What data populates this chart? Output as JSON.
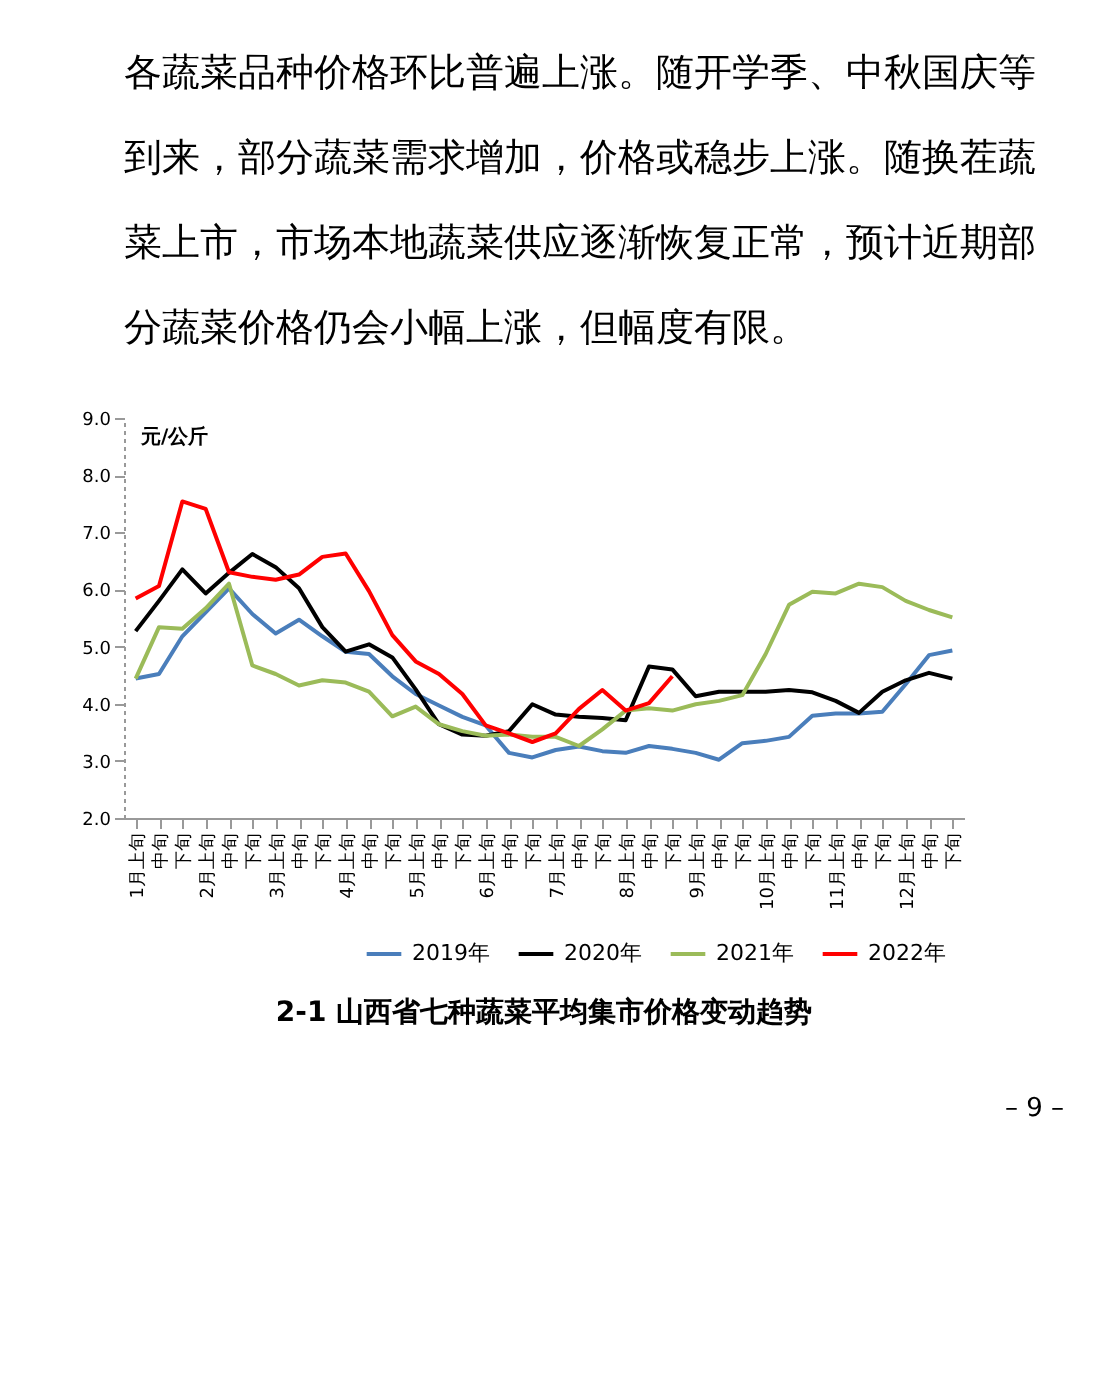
{
  "chart_data": {
    "type": "line",
    "title": "2-1 山西省七种蔬菜平均集市价格变动趋势",
    "ylabel": "元/公斤",
    "annotations": [
      "各蔬菜品种价格环比普遍上涨。随开学季、中秋国庆等",
      "到来，部分蔬菜需求增加，价格或稳步上涨。随换茬蔬",
      "菜上市，市场本地蔬菜供应逐渐恢复正常，预计近期部",
      "分蔬菜价格仍会小幅上涨，但幅度有限。",
      "– 9 –"
    ],
    "categories": [
      "1月上旬",
      "中旬",
      "下旬",
      "2月上旬",
      "中旬",
      "下旬",
      "3月上旬",
      "中旬",
      "下旬",
      "4月上旬",
      "中旬",
      "下旬",
      "5月上旬",
      "中旬",
      "下旬",
      "6月上旬",
      "中旬",
      "下旬",
      "7月上旬",
      "中旬",
      "下旬",
      "8月上旬",
      "中旬",
      "下旬",
      "9月上旬",
      "中旬",
      "下旬",
      "10月上旬",
      "中旬",
      "下旬",
      "11月上旬",
      "中旬",
      "下旬",
      "12月上旬",
      "中旬",
      "下旬"
    ],
    "series": [
      {
        "name": "2019年",
        "color": "#4a7ebb",
        "values": [
          4.44,
          4.52,
          5.18,
          5.6,
          6.02,
          5.57,
          5.23,
          5.47,
          5.18,
          4.91,
          4.87,
          4.48,
          4.17,
          3.97,
          3.77,
          3.62,
          3.14,
          3.06,
          3.19,
          3.25,
          3.17,
          3.14,
          3.26,
          3.21,
          3.14,
          3.02,
          3.31,
          3.35,
          3.42,
          3.79,
          3.83,
          3.83,
          3.86,
          4.34,
          4.85,
          4.93
        ]
      },
      {
        "name": "2020年",
        "color": "#000000",
        "values": [
          5.27,
          5.8,
          6.35,
          5.93,
          6.29,
          6.62,
          6.39,
          6.02,
          5.34,
          4.91,
          5.04,
          4.81,
          4.25,
          3.64,
          3.46,
          3.44,
          3.52,
          3.99,
          3.81,
          3.77,
          3.75,
          3.71,
          4.65,
          4.6,
          4.13,
          4.21,
          4.21,
          4.21,
          4.24,
          4.2,
          4.05,
          3.84,
          4.21,
          4.41,
          4.54,
          4.44
        ]
      },
      {
        "name": "2021年",
        "color": "#9bbb59",
        "values": [
          4.44,
          5.34,
          5.31,
          5.67,
          6.1,
          4.67,
          4.52,
          4.32,
          4.41,
          4.37,
          4.21,
          3.78,
          3.95,
          3.64,
          3.52,
          3.44,
          3.46,
          3.42,
          3.42,
          3.26,
          3.55,
          3.88,
          3.92,
          3.88,
          3.99,
          4.05,
          4.15,
          4.87,
          5.73,
          5.96,
          5.93,
          6.1,
          6.04,
          5.8,
          5.64,
          5.51
        ]
      },
      {
        "name": "2022年",
        "color": "#ff0000",
        "values": [
          5.84,
          6.06,
          7.54,
          7.41,
          6.3,
          6.22,
          6.17,
          6.26,
          6.57,
          6.63,
          5.97,
          5.2,
          4.74,
          4.52,
          4.17,
          3.62,
          3.48,
          3.33,
          3.48,
          3.91,
          4.24,
          3.88,
          4.01,
          4.48,
          null,
          null,
          null,
          null,
          null,
          null,
          null,
          null,
          null,
          null,
          null,
          null
        ]
      }
    ],
    "ylim": [
      2,
      9
    ],
    "yticks": [
      {
        "value": 2,
        "label": "2.0"
      },
      {
        "value": 3,
        "label": "3.0"
      },
      {
        "value": 4,
        "label": "4.0"
      },
      {
        "value": 5,
        "label": "5.0"
      },
      {
        "value": 6,
        "label": "6.0"
      },
      {
        "value": 7,
        "label": "7.0"
      },
      {
        "value": 8,
        "label": "8.0"
      },
      {
        "value": 9,
        "label": "9.0"
      }
    ],
    "grid": false,
    "legend": "bottom",
    "marker": "none",
    "line_style": "solid"
  }
}
